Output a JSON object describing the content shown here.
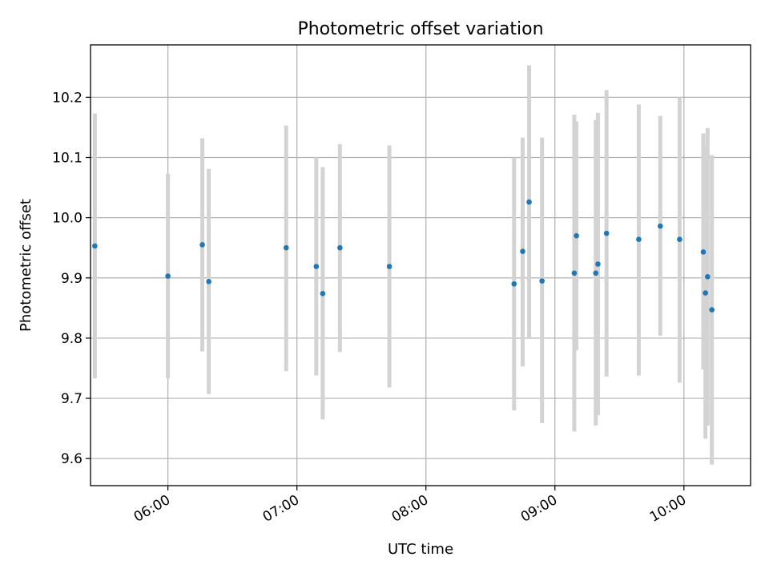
{
  "chart_data": {
    "type": "scatter",
    "title": "Photometric offset variation",
    "xlabel": "UTC time",
    "ylabel": "Photometric offset",
    "x_unit": "UTC time (HH:MM)",
    "xlim": [
      "05:24",
      "10:31"
    ],
    "ylim": [
      9.555,
      10.287
    ],
    "x_ticks": [
      "06:00",
      "07:00",
      "08:00",
      "09:00",
      "10:00"
    ],
    "y_ticks": [
      9.6,
      9.7,
      9.8,
      9.9,
      10.0,
      10.1,
      10.2
    ],
    "y_tick_labels": [
      "9.6",
      "9.7",
      "9.8",
      "9.9",
      "10.0",
      "10.1",
      "10.2"
    ],
    "grid": true,
    "legend": "none",
    "colors": {
      "points": "#1f77b4",
      "errorbars": "#d3d3d3",
      "grid": "#b0b0b0"
    },
    "series": [
      {
        "points": [
          {
            "x": "05:26",
            "y": 9.953,
            "ylo": 9.733,
            "yhi": 10.173
          },
          {
            "x": "06:00",
            "y": 9.903,
            "ylo": 9.733,
            "yhi": 10.073
          },
          {
            "x": "06:16",
            "y": 9.955,
            "ylo": 9.778,
            "yhi": 10.132
          },
          {
            "x": "06:19",
            "y": 9.894,
            "ylo": 9.707,
            "yhi": 10.081
          },
          {
            "x": "06:55",
            "y": 9.95,
            "ylo": 9.745,
            "yhi": 10.153
          },
          {
            "x": "07:09",
            "y": 9.919,
            "ylo": 9.738,
            "yhi": 10.1
          },
          {
            "x": "07:12",
            "y": 9.874,
            "ylo": 9.665,
            "yhi": 10.084
          },
          {
            "x": "07:20",
            "y": 9.95,
            "ylo": 9.777,
            "yhi": 10.122
          },
          {
            "x": "07:43",
            "y": 9.919,
            "ylo": 9.718,
            "yhi": 10.12
          },
          {
            "x": "08:41",
            "y": 9.89,
            "ylo": 9.68,
            "yhi": 10.1
          },
          {
            "x": "08:45",
            "y": 9.944,
            "ylo": 9.753,
            "yhi": 10.133
          },
          {
            "x": "08:48",
            "y": 10.026,
            "ylo": 9.8,
            "yhi": 10.253
          },
          {
            "x": "08:54",
            "y": 9.895,
            "ylo": 9.659,
            "yhi": 10.133
          },
          {
            "x": "09:09",
            "y": 9.908,
            "ylo": 9.645,
            "yhi": 10.171
          },
          {
            "x": "09:10",
            "y": 9.97,
            "ylo": 9.78,
            "yhi": 10.16
          },
          {
            "x": "09:19",
            "y": 9.908,
            "ylo": 9.655,
            "yhi": 10.162
          },
          {
            "x": "09:20",
            "y": 9.923,
            "ylo": 9.672,
            "yhi": 10.174
          },
          {
            "x": "09:24",
            "y": 9.974,
            "ylo": 9.736,
            "yhi": 10.212
          },
          {
            "x": "09:39",
            "y": 9.964,
            "ylo": 9.738,
            "yhi": 10.188
          },
          {
            "x": "09:49",
            "y": 9.986,
            "ylo": 9.804,
            "yhi": 10.169
          },
          {
            "x": "09:58",
            "y": 9.964,
            "ylo": 9.726,
            "yhi": 10.2
          },
          {
            "x": "10:09",
            "y": 9.943,
            "ylo": 9.748,
            "yhi": 10.14
          },
          {
            "x": "10:10",
            "y": 9.875,
            "ylo": 9.633,
            "yhi": 10.118
          },
          {
            "x": "10:11",
            "y": 9.902,
            "ylo": 9.655,
            "yhi": 10.149
          },
          {
            "x": "10:13",
            "y": 9.847,
            "ylo": 9.59,
            "yhi": 10.104
          }
        ]
      }
    ]
  }
}
